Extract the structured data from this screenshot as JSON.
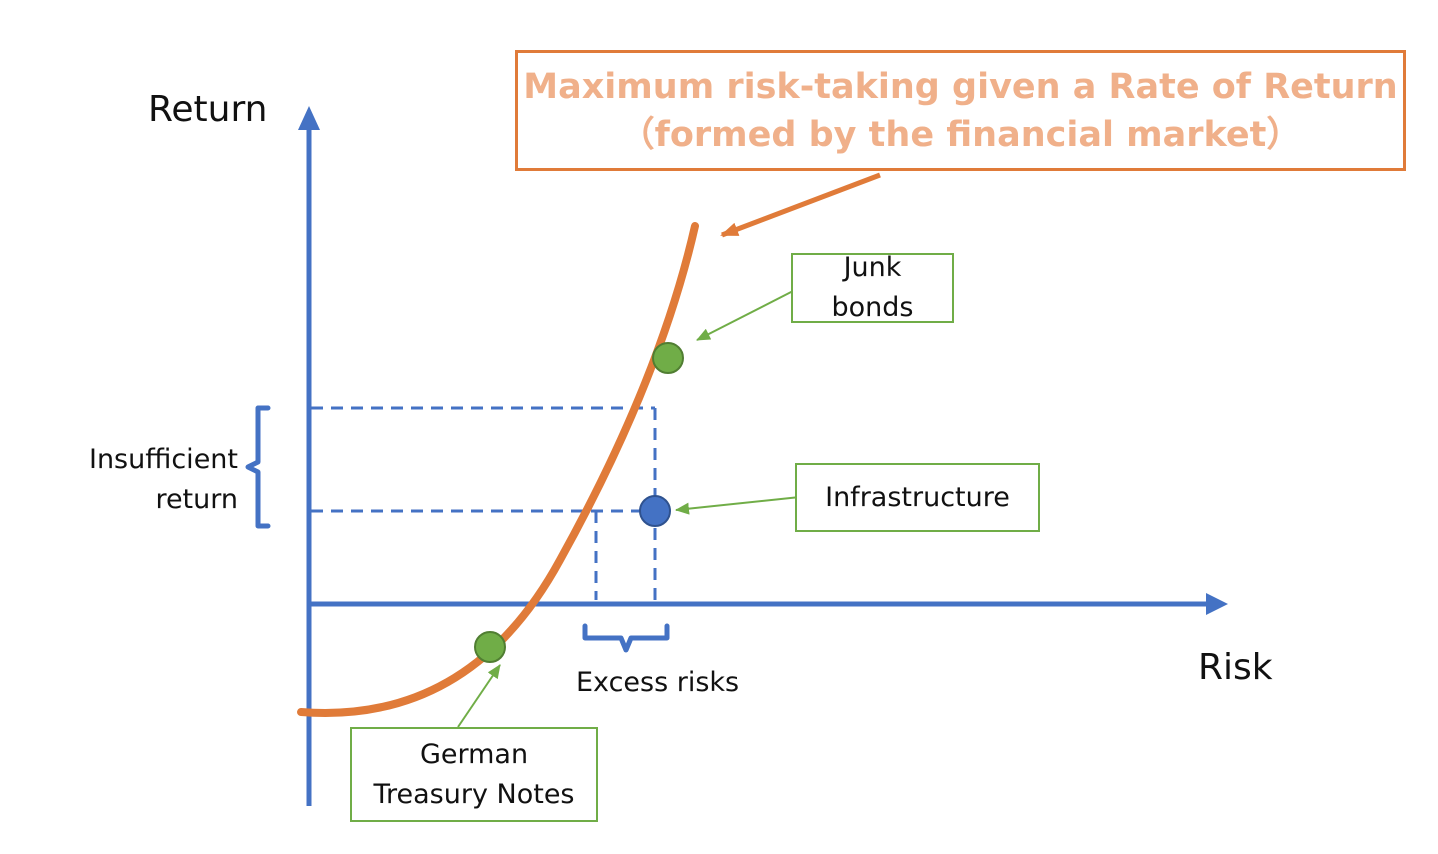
{
  "title_box": {
    "line1": "Maximum risk-taking given a Rate of Return",
    "line2": "（formed by the financial market）"
  },
  "axes": {
    "y_label": "Return",
    "x_label": "Risk"
  },
  "annotations": {
    "insufficient_line1": "Insufficient",
    "insufficient_line2": "return",
    "excess_risks": "Excess risks"
  },
  "callouts": {
    "junk_line1": "Junk",
    "junk_line2": "bonds",
    "infrastructure": "Infrastructure",
    "german_line1": "German",
    "german_line2": "Treasury Notes"
  },
  "colors": {
    "axis": "#4472c4",
    "curve": "#e07b39",
    "green_point": "#70ad47",
    "blue_point": "#4472c4",
    "title_text": "#f0b08a",
    "callout_border": "#70ad47"
  }
}
